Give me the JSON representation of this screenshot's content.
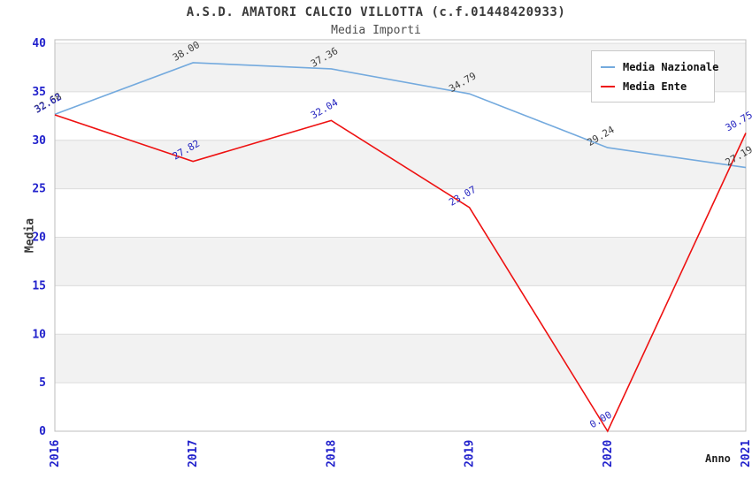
{
  "header": {
    "title": "A.S.D. AMATORI CALCIO VILLOTTA (c.f.01448420933)",
    "subtitle": "Media Importi"
  },
  "chart_data": {
    "type": "line",
    "x": [
      "2016",
      "2017",
      "2018",
      "2019",
      "2020",
      "2021"
    ],
    "series": [
      {
        "name": "Media Nazionale",
        "color": "#74aade",
        "label_color": "#404040",
        "values": [
          32.68,
          38.0,
          37.36,
          34.79,
          29.24,
          27.19
        ]
      },
      {
        "name": "Media Ente",
        "color": "#ee1111",
        "label_color": "#2525c0",
        "values": [
          32.62,
          27.82,
          32.04,
          23.07,
          0.0,
          30.75
        ]
      }
    ],
    "xlabel": "Anno",
    "ylabel": "Media",
    "ylim": [
      0,
      40
    ],
    "ytick_step": 5,
    "yticks": [
      0,
      5,
      10,
      15,
      20,
      25,
      30,
      35,
      40
    ],
    "tick_color": "#2222cc",
    "grid": true,
    "legend_position": "top-right"
  }
}
